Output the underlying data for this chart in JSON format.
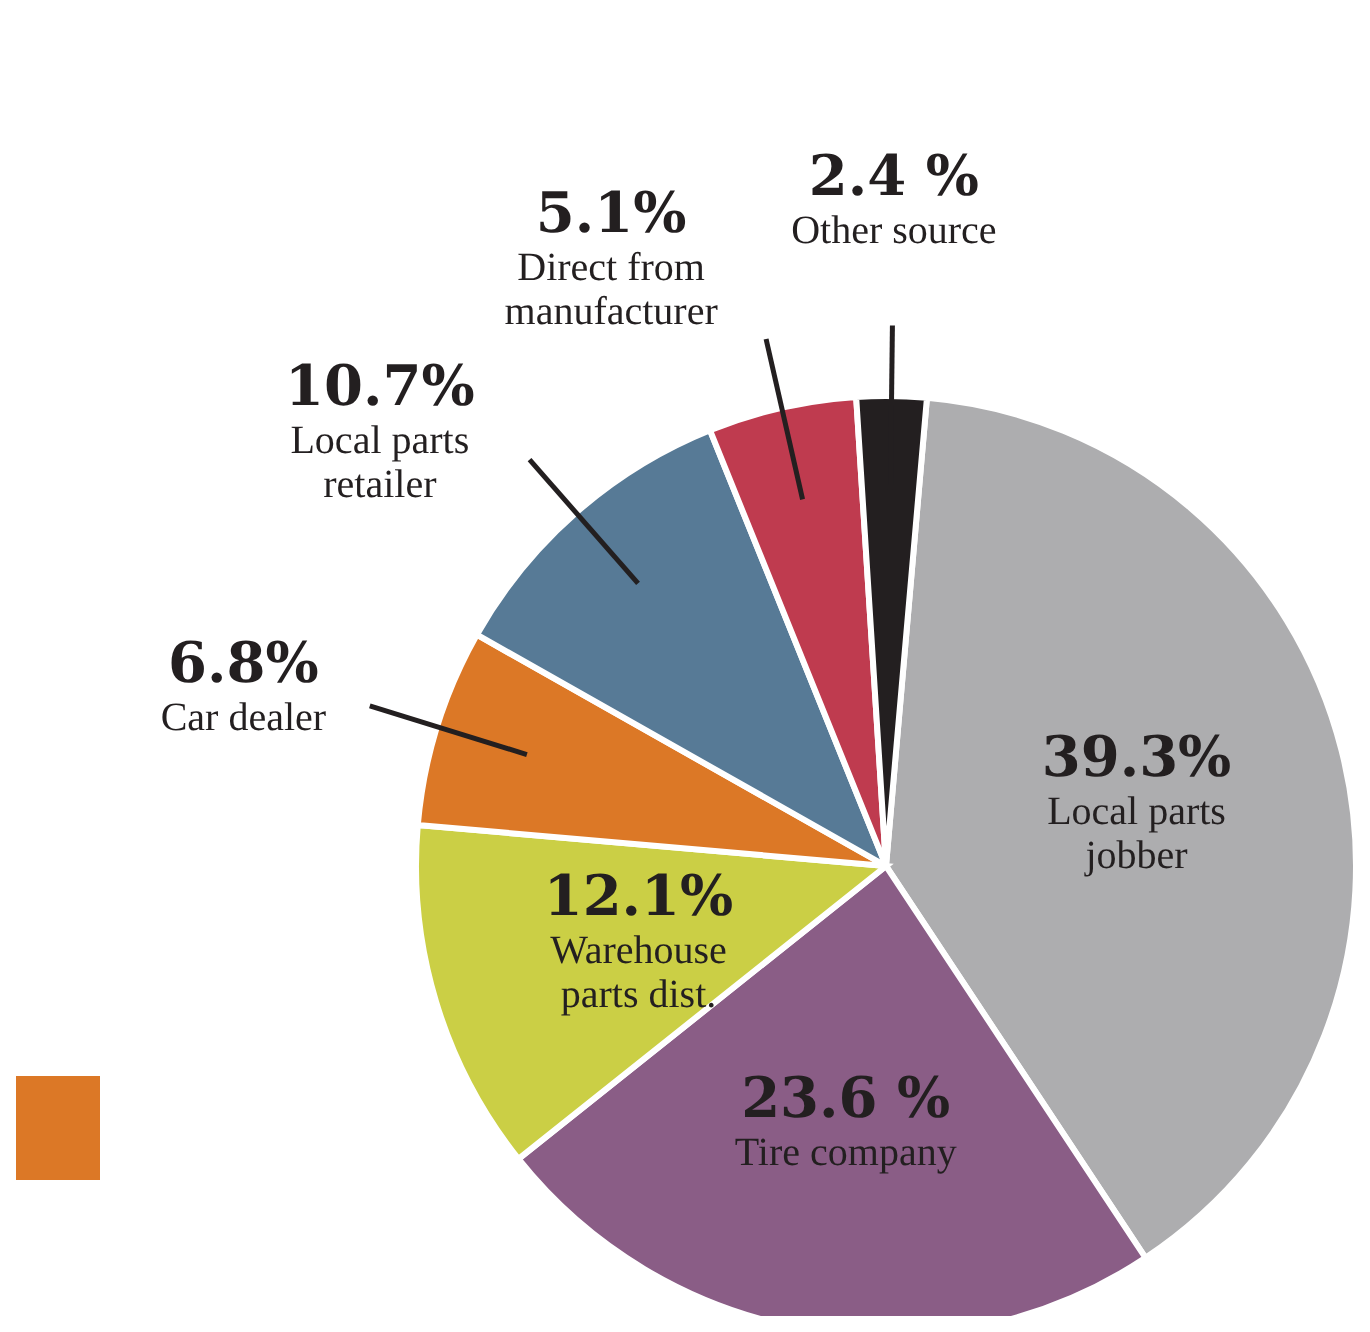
{
  "chart_data": {
    "type": "pie",
    "categories": [
      "Local parts jobber",
      "Tire company",
      "Warehouse parts dist.",
      "Car dealer",
      "Local parts retailer",
      "Direct from manufacturer",
      "Other source"
    ],
    "values": [
      39.3,
      23.6,
      12.1,
      6.8,
      10.7,
      5.1,
      2.4
    ],
    "colors": [
      "#adadaf",
      "#8a5d86",
      "#cbcf45",
      "#dc7826",
      "#577a96",
      "#bf3b4f",
      "#231f20"
    ],
    "value_labels": [
      "39.3%",
      "23.6 %",
      "12.1%",
      "6.8%",
      "10.7%",
      "5.1%",
      "2.4 %"
    ],
    "legend": false
  }
}
